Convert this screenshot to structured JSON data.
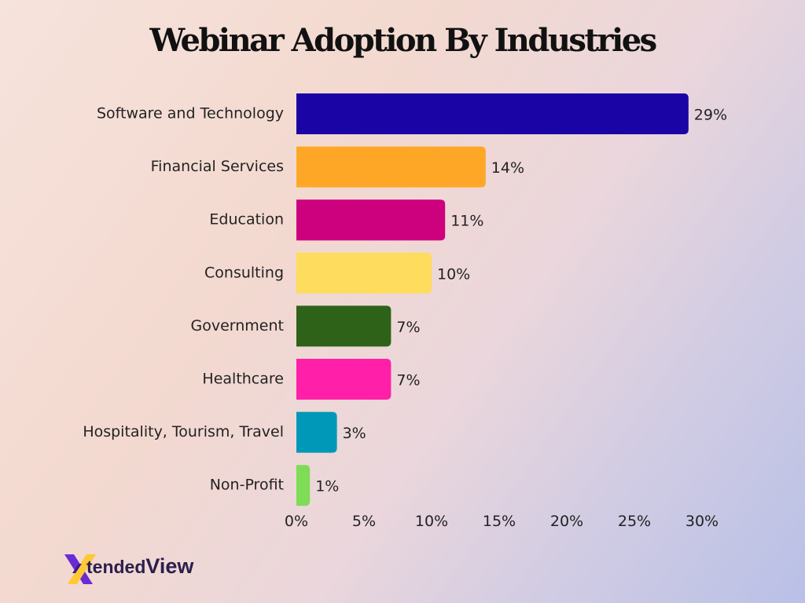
{
  "colors": {
    "software": "#1a04a6",
    "financial": "#fea727",
    "education": "#cd007e",
    "consulting": "#fedc5d",
    "government": "#2e6218",
    "healthcare": "#ff1fa8",
    "hospitality": "#0098b8",
    "nonprofit": "#7edc57"
  },
  "logo": {
    "text_a": "tended",
    "text_b": "View"
  },
  "chart_data": {
    "type": "bar",
    "orientation": "horizontal",
    "title": "Webinar Adoption By Industries",
    "categories": [
      "Software and Technology",
      "Financial Services",
      "Education",
      "Consulting",
      "Government",
      "Healthcare",
      "Hospitality, Tourism, Travel",
      "Non-Profit"
    ],
    "values": [
      29,
      14,
      11,
      10,
      7,
      7,
      3,
      1
    ],
    "value_labels": [
      "29%",
      "14%",
      "11%",
      "10%",
      "7%",
      "7%",
      "3%",
      "1%"
    ],
    "bar_colors": [
      "#1a04a6",
      "#fea727",
      "#cd007e",
      "#fedc5d",
      "#2e6218",
      "#ff1fa8",
      "#0098b8",
      "#7edc57"
    ],
    "xlim": [
      0,
      30
    ],
    "xticks": [
      0,
      5,
      10,
      15,
      20,
      25,
      30
    ],
    "xtick_labels": [
      "0%",
      "5%",
      "10%",
      "15%",
      "20%",
      "25%",
      "30%"
    ],
    "grid": false,
    "legend": "none"
  }
}
